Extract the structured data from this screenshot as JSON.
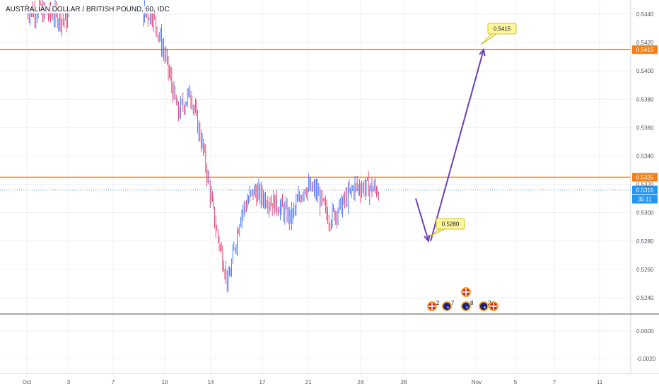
{
  "header": {
    "title": "AUSTRALIAN DOLLAR / BRITISH POUND, 60, IDC"
  },
  "colors": {
    "up": "#2962ff",
    "down": "#e0245e",
    "resistance": "#f57f17",
    "support": "#f57f17",
    "arrow": "#6a3fb8",
    "price_line": "#2196f3",
    "callout_bg": "#fff59d",
    "callout_border": "#c6b400",
    "divider": "#555555"
  },
  "chart_data": {
    "type": "candlestick",
    "title": "AUSTRALIAN DOLLAR / BRITISH POUND, 60, IDC",
    "x_ticks": [
      "Oct",
      "3",
      "7",
      "10",
      "14",
      "17",
      "21",
      "24",
      "28",
      "Nov",
      "5",
      "7",
      "11"
    ],
    "y_ticks": [
      "0.5440",
      "0.5420",
      "0.5400",
      "0.5380",
      "0.5360",
      "0.5340",
      "0.5320",
      "0.5300",
      "0.5280",
      "0.5260",
      "0.5240"
    ],
    "ylim": [
      0.5229,
      0.545
    ],
    "price_series": [
      {
        "date": "Oct 1",
        "close": 0.5443
      },
      {
        "date": "Oct 3",
        "close": 0.544
      },
      {
        "date": "Oct 4",
        "close": 0.5436
      },
      {
        "date": "Oct 10",
        "close": 0.544
      },
      {
        "date": "Oct 11",
        "close": 0.544
      },
      {
        "date": "Oct 12",
        "close": 0.541
      },
      {
        "date": "Oct 13",
        "close": 0.537
      },
      {
        "date": "Oct 14",
        "close": 0.5385
      },
      {
        "date": "Oct 15",
        "close": 0.5345
      },
      {
        "date": "Oct 16",
        "close": 0.529
      },
      {
        "date": "Oct 17",
        "close": 0.525
      },
      {
        "date": "Oct 18",
        "close": 0.53
      },
      {
        "date": "Oct 19",
        "close": 0.5315
      },
      {
        "date": "Oct 21",
        "close": 0.5305
      },
      {
        "date": "Oct 22",
        "close": 0.5296
      },
      {
        "date": "Oct 23",
        "close": 0.5318
      },
      {
        "date": "Oct 24",
        "close": 0.5315
      },
      {
        "date": "Oct 25",
        "close": 0.5296
      },
      {
        "date": "Oct 26",
        "close": 0.5305
      },
      {
        "date": "Oct 27",
        "close": 0.5318
      },
      {
        "date": "Oct 28",
        "close": 0.5318
      },
      {
        "date": "Oct 29",
        "close": 0.5316
      }
    ],
    "levels": [
      {
        "name": "resistance",
        "value": 0.5415,
        "label": "0.5415"
      },
      {
        "name": "support",
        "value": 0.5325,
        "label": "0.5325"
      }
    ],
    "current_price": {
      "label": "0.5316",
      "value": 0.5316,
      "timer": "35:11"
    },
    "projection": [
      {
        "date": "Oct 29",
        "value": 0.531
      },
      {
        "date": "Oct 31",
        "value": 0.528
      },
      {
        "date": "Nov 1",
        "value": 0.5415
      }
    ],
    "callouts": [
      {
        "label": "0.5280",
        "date": "Oct 31",
        "value": 0.528
      },
      {
        "label": "0.5415",
        "date": "Nov 1",
        "value": 0.5415
      }
    ],
    "lower_pane": {
      "y_ticks": [
        "0.0000",
        "-0.0020"
      ]
    },
    "events": [
      {
        "flag": "gb",
        "count": "2",
        "date": "Oct 30"
      },
      {
        "flag": "au",
        "count": "7",
        "date": "Oct 30"
      },
      {
        "flag": "gb",
        "count": "",
        "date": "Oct 31"
      },
      {
        "flag": "au",
        "count": "8",
        "date": "Oct 31"
      },
      {
        "flag": "au",
        "count": "2",
        "date": "Nov 1"
      },
      {
        "flag": "gb",
        "count": "",
        "date": "Nov 2"
      }
    ],
    "grid": true
  }
}
